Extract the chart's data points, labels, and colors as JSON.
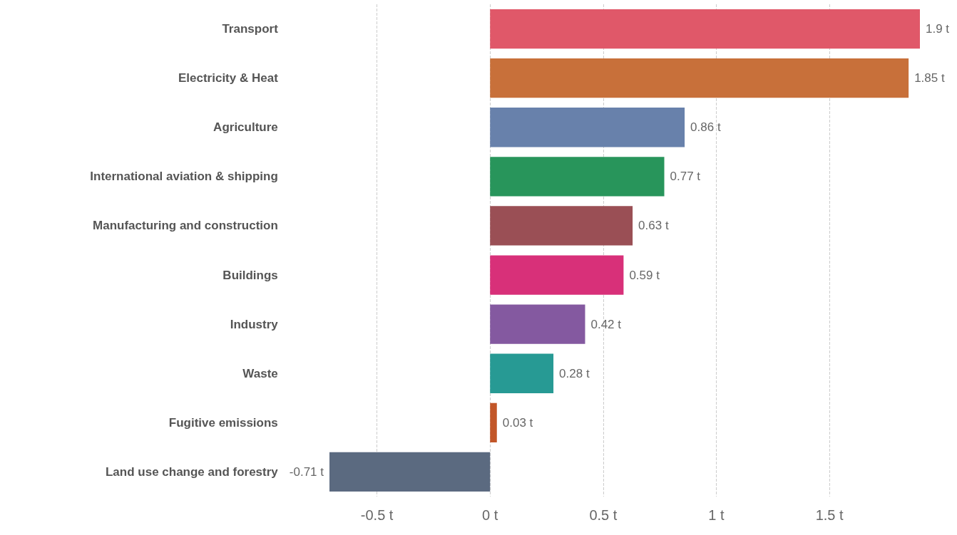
{
  "chart_data": {
    "type": "bar",
    "orientation": "horizontal",
    "categories": [
      "Transport",
      "Electricity & Heat",
      "Agriculture",
      "International aviation & shipping",
      "Manufacturing and construction",
      "Buildings",
      "Industry",
      "Waste",
      "Fugitive emissions",
      "Land use change and forestry"
    ],
    "values": [
      1.9,
      1.85,
      0.86,
      0.77,
      0.63,
      0.59,
      0.42,
      0.28,
      0.03,
      -0.71
    ],
    "value_labels": [
      "1.9 t",
      "1.85 t",
      "0.86 t",
      "0.77 t",
      "0.63 t",
      "0.59 t",
      "0.42 t",
      "0.28 t",
      "0.03 t",
      "-0.71 t"
    ],
    "colors": [
      "#e05869",
      "#c8703a",
      "#6881ab",
      "#28955b",
      "#9a4f55",
      "#d83079",
      "#8459a0",
      "#279a94",
      "#c25628",
      "#5b6a80"
    ],
    "xlim": [
      -0.71,
      1.9
    ],
    "xticks": [
      {
        "value": -0.5,
        "label": "-0.5 t"
      },
      {
        "value": 0,
        "label": "0 t"
      },
      {
        "value": 0.5,
        "label": "0.5 t"
      },
      {
        "value": 1,
        "label": "1 t"
      },
      {
        "value": 1.5,
        "label": "1.5 t"
      }
    ],
    "grid": "x"
  }
}
